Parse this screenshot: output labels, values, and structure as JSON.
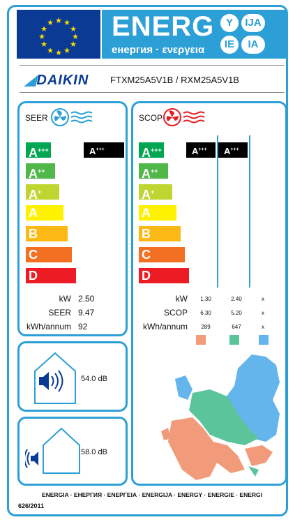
{
  "header": {
    "title": "ENERG",
    "subtitle": "енергия · ενεργεια",
    "lang_badges": [
      "Y",
      "IJA",
      "IE",
      "IA"
    ]
  },
  "brand": {
    "name": "DAIKIN",
    "model": "FTXM25A5V1B / RXM25A5V1B"
  },
  "cooling": {
    "title": "SEER",
    "scale": [
      "A+++",
      "A++",
      "A+",
      "A",
      "B",
      "C",
      "D"
    ],
    "rating": "A+++",
    "rows": [
      {
        "label": "kW",
        "value": "2.50"
      },
      {
        "label": "SEER",
        "value": "9.47"
      },
      {
        "label": "kWh/annum",
        "value": "92"
      }
    ]
  },
  "heating": {
    "title": "SCOP",
    "scale": [
      "A+++",
      "A++",
      "A+",
      "A",
      "B",
      "C",
      "D"
    ],
    "ratings": [
      "A+++",
      "A+++"
    ],
    "rows": [
      {
        "label": "kW",
        "values": [
          "1.30",
          "2.40",
          "x"
        ]
      },
      {
        "label": "SCOP",
        "values": [
          "6.30",
          "5.20",
          "x"
        ]
      },
      {
        "label": "kWh/annum",
        "values": [
          "289",
          "647",
          "x"
        ]
      }
    ],
    "zone_colors": [
      "#f29b7a",
      "#5cc49b",
      "#64b5ec"
    ]
  },
  "noise": {
    "indoor": "54.0 dB",
    "outdoor": "58.0 dB"
  },
  "footer": {
    "text": "ENERGIA · ЕНЕРГИЯ · ΕΝΕΡΓΕΙΑ · ENERGIJA · ENERGY · ENERGIE · ENERGI",
    "regulation": "626/2011"
  },
  "colors": {
    "frame": "#2b9fd6",
    "eu_blue": "#0a3a94",
    "eu_star": "#ffdd00"
  }
}
